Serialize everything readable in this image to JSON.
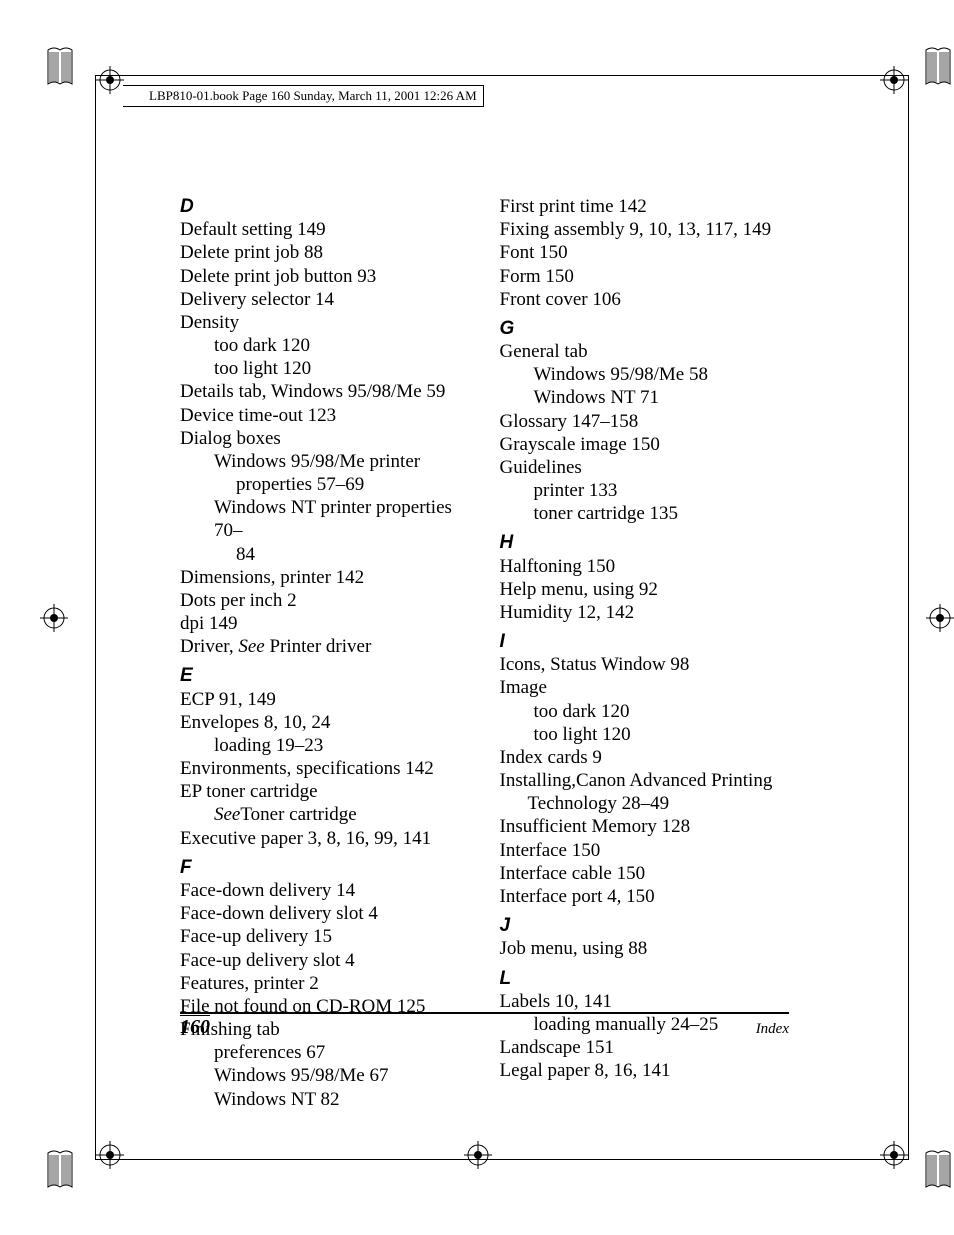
{
  "header": "LBP810-01.book  Page 160  Sunday, March 11, 2001  12:26 AM",
  "footer": {
    "page": "160",
    "label": "Index"
  },
  "left_col": [
    {
      "type": "letter",
      "text": "D"
    },
    {
      "type": "entry",
      "text": "Default setting 149"
    },
    {
      "type": "entry",
      "text": "Delete print job 88"
    },
    {
      "type": "entry",
      "text": "Delete print job button 93"
    },
    {
      "type": "entry",
      "text": "Delivery selector 14"
    },
    {
      "type": "entry",
      "text": "Density"
    },
    {
      "type": "sub",
      "text": "too dark 120"
    },
    {
      "type": "sub",
      "text": "too light 120"
    },
    {
      "type": "entry",
      "text": "Details tab, Windows 95/98/Me 59"
    },
    {
      "type": "entry",
      "text": "Device time-out 123"
    },
    {
      "type": "entry",
      "text": "Dialog boxes"
    },
    {
      "type": "sub",
      "text": "Windows 95/98/Me printer"
    },
    {
      "type": "sub2",
      "text": "properties 57–69"
    },
    {
      "type": "sub",
      "text": "Windows NT printer properties 70–"
    },
    {
      "type": "sub2",
      "text": "84"
    },
    {
      "type": "entry",
      "text": "Dimensions, printer 142"
    },
    {
      "type": "entry",
      "text": "Dots per inch 2"
    },
    {
      "type": "entry",
      "text": "dpi 149"
    },
    {
      "type": "entry-italic",
      "prefix": "Driver, ",
      "italic": "See",
      "suffix": " Printer driver"
    },
    {
      "type": "letter",
      "text": "E"
    },
    {
      "type": "entry",
      "text": "ECP 91, 149"
    },
    {
      "type": "entry",
      "text": "Envelopes 8, 10, 24"
    },
    {
      "type": "sub",
      "text": "loading 19–23"
    },
    {
      "type": "entry",
      "text": "Environments, specifications 142"
    },
    {
      "type": "entry",
      "text": "EP toner cartridge"
    },
    {
      "type": "sub-italic",
      "prefix": "",
      "italic": "See",
      "suffix": "Toner cartridge"
    },
    {
      "type": "entry",
      "text": "Executive paper 3, 8, 16, 99, 141"
    },
    {
      "type": "letter",
      "text": "F"
    },
    {
      "type": "entry",
      "text": "Face-down delivery 14"
    },
    {
      "type": "entry",
      "text": "Face-down delivery slot 4"
    },
    {
      "type": "entry",
      "text": "Face-up delivery 15"
    },
    {
      "type": "entry",
      "text": "Face-up delivery slot 4"
    },
    {
      "type": "entry",
      "text": "Features, printer 2"
    },
    {
      "type": "entry",
      "text": "File not found on CD-ROM 125"
    },
    {
      "type": "entry",
      "text": "Finishing tab"
    },
    {
      "type": "sub",
      "text": "preferences 67"
    },
    {
      "type": "sub",
      "text": "Windows 95/98/Me 67"
    },
    {
      "type": "sub",
      "text": "Windows NT 82"
    }
  ],
  "right_col": [
    {
      "type": "entry",
      "text": "First print time 142"
    },
    {
      "type": "entry",
      "text": "Fixing assembly 9, 10, 13, 117, 149"
    },
    {
      "type": "entry",
      "text": "Font 150"
    },
    {
      "type": "entry",
      "text": "Form 150"
    },
    {
      "type": "entry",
      "text": "Front cover 106"
    },
    {
      "type": "letter",
      "text": "G"
    },
    {
      "type": "entry",
      "text": "General tab"
    },
    {
      "type": "sub",
      "text": "Windows 95/98/Me 58"
    },
    {
      "type": "sub",
      "text": "Windows NT 71"
    },
    {
      "type": "entry",
      "text": "Glossary 147–158"
    },
    {
      "type": "entry",
      "text": "Grayscale image 150"
    },
    {
      "type": "entry",
      "text": "Guidelines"
    },
    {
      "type": "sub",
      "text": "printer 133"
    },
    {
      "type": "sub",
      "text": "toner cartridge 135"
    },
    {
      "type": "letter",
      "text": "H"
    },
    {
      "type": "entry",
      "text": "Halftoning 150"
    },
    {
      "type": "entry",
      "text": "Help menu, using 92"
    },
    {
      "type": "entry",
      "text": "Humidity 12, 142"
    },
    {
      "type": "letter",
      "text": "I"
    },
    {
      "type": "entry",
      "text": "Icons, Status Window 98"
    },
    {
      "type": "entry",
      "text": "Image"
    },
    {
      "type": "sub",
      "text": "too dark 120"
    },
    {
      "type": "sub",
      "text": "too light 120"
    },
    {
      "type": "entry",
      "text": "Index cards 9"
    },
    {
      "type": "entry",
      "text": "Installing,Canon Advanced Printing"
    },
    {
      "type": "sub-plain",
      "text": "Technology 28–49"
    },
    {
      "type": "entry",
      "text": "Insufficient Memory 128"
    },
    {
      "type": "entry",
      "text": "Interface 150"
    },
    {
      "type": "entry",
      "text": "Interface cable 150"
    },
    {
      "type": "entry",
      "text": "Interface port 4, 150"
    },
    {
      "type": "letter",
      "text": "J"
    },
    {
      "type": "entry",
      "text": "Job menu, using 88"
    },
    {
      "type": "letter",
      "text": "L"
    },
    {
      "type": "entry",
      "text": "Labels 10, 141"
    },
    {
      "type": "sub",
      "text": "loading manually 24–25"
    },
    {
      "type": "entry",
      "text": "Landscape 151"
    },
    {
      "type": "entry",
      "text": "Legal paper 8, 16, 141"
    }
  ]
}
